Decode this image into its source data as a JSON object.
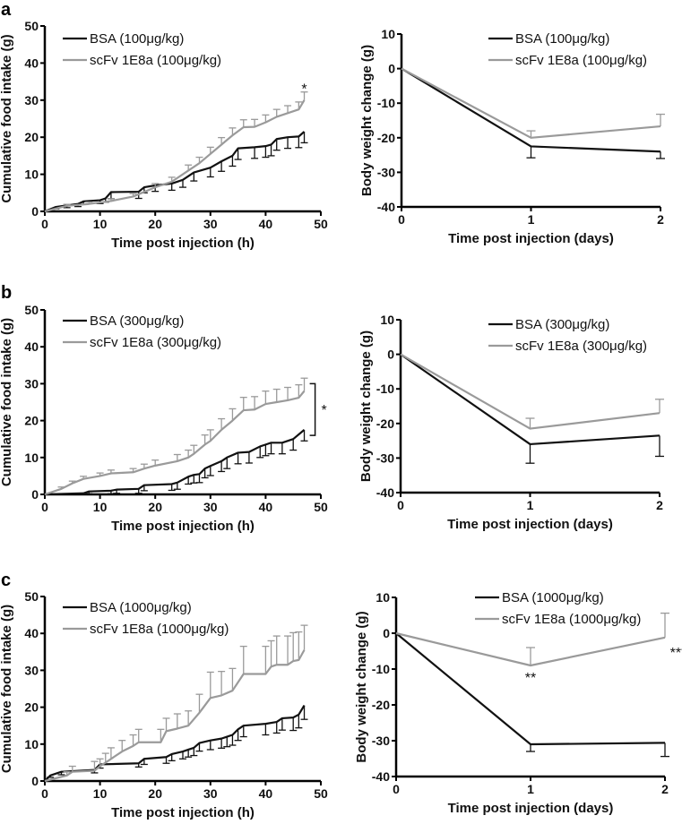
{
  "colors": {
    "bsa": "#111111",
    "scfv": "#9a9a9a"
  },
  "chart_data": [
    {
      "panel": "a",
      "type": "line",
      "xlabel": "Time post injection (h)",
      "ylabel": "Cumulative food intake (g)",
      "xlim": [
        0,
        50
      ],
      "ylim": [
        0,
        50
      ],
      "xticks": [
        0,
        10,
        20,
        30,
        40,
        50
      ],
      "yticks": [
        0,
        10,
        20,
        30,
        40,
        50
      ],
      "legend_position": "top-left",
      "series": [
        {
          "name": "BSA (100μg/kg)",
          "color": "bsa",
          "err_dir": -1,
          "x": [
            0,
            2,
            4,
            6,
            7,
            10,
            11,
            12,
            17,
            18,
            20,
            23,
            25,
            27,
            30,
            32,
            34,
            35,
            38,
            40,
            41,
            42,
            44,
            46,
            47
          ],
          "y": [
            0,
            1.2,
            1.6,
            2,
            2.7,
            3,
            3.5,
            5.2,
            5.3,
            6.5,
            7,
            7.5,
            8.5,
            10.5,
            11.8,
            13.5,
            15,
            17,
            17.3,
            17.6,
            18,
            19.5,
            20,
            20.2,
            21.5
          ],
          "err": [
            0,
            0.5,
            0.6,
            0.7,
            0.8,
            0.9,
            1,
            1.8,
            1.8,
            1.5,
            1.6,
            1.8,
            2,
            2.3,
            2.5,
            2.7,
            2.8,
            3,
            3,
            3,
            3,
            3,
            3,
            3,
            3
          ]
        },
        {
          "name": "scFv 1E8a (100μg/kg)",
          "color": "scfv",
          "err_dir": 1,
          "x": [
            0,
            4,
            8,
            12,
            16,
            20,
            23,
            26,
            28,
            30,
            32,
            34,
            36,
            38,
            40,
            42,
            44,
            46,
            47
          ],
          "y": [
            0,
            1.5,
            2,
            2.8,
            4,
            6.5,
            8,
            11,
            13,
            15.5,
            18,
            20.5,
            22.7,
            22.8,
            24,
            25.5,
            26.5,
            27.5,
            30
          ],
          "err": [
            0,
            0.4,
            0.5,
            0.6,
            0.8,
            1,
            1.2,
            1.5,
            1.6,
            1.8,
            1.9,
            2,
            2,
            2,
            2,
            2,
            2,
            2,
            2.2
          ]
        }
      ],
      "annotations": [
        {
          "text": "*",
          "x": 47,
          "y": 33
        }
      ]
    },
    {
      "panel": "a",
      "type": "line",
      "xlabel": "Time post injection (days)",
      "ylabel": "Body weight change (g)",
      "xlim": [
        0,
        2
      ],
      "ylim": [
        -40,
        10
      ],
      "xticks": [
        0,
        1,
        2
      ],
      "yticks": [
        10,
        0,
        -10,
        -20,
        -30,
        -40
      ],
      "legend_position": "top-right",
      "series": [
        {
          "name": "BSA (100μg/kg)",
          "color": "bsa",
          "err_dir": -1,
          "x": [
            0,
            1,
            2
          ],
          "y": [
            0,
            -22.5,
            -24
          ],
          "err": [
            0,
            3.3,
            2
          ]
        },
        {
          "name": "scFv 1E8a (100μg/kg)",
          "color": "scfv",
          "err_dir": 1,
          "x": [
            0,
            1,
            2
          ],
          "y": [
            0,
            -20,
            -16.7
          ],
          "err": [
            0,
            2,
            3.5
          ]
        }
      ],
      "annotations": []
    },
    {
      "panel": "b",
      "type": "line",
      "xlabel": "Time post injection (h)",
      "ylabel": "Cumulative food intake (g)",
      "xlim": [
        0,
        50
      ],
      "ylim": [
        0,
        50
      ],
      "xticks": [
        0,
        10,
        20,
        30,
        40,
        50
      ],
      "yticks": [
        0,
        10,
        20,
        30,
        40,
        50
      ],
      "legend_position": "top-left",
      "series": [
        {
          "name": "BSA (300μg/kg)",
          "color": "bsa",
          "err_dir": -1,
          "x": [
            0,
            7,
            8,
            12,
            13,
            17,
            18,
            23,
            24,
            26,
            27,
            28,
            29,
            30,
            32,
            33,
            35,
            37,
            39,
            40,
            41,
            43,
            45,
            47
          ],
          "y": [
            0,
            0.3,
            0.8,
            1,
            1.3,
            1.5,
            2.5,
            2.8,
            3.2,
            4.8,
            5.3,
            5.5,
            7,
            7.7,
            9,
            10,
            11.3,
            11.5,
            13,
            13.5,
            14,
            14,
            15,
            17.5
          ],
          "err": [
            0,
            0.3,
            0.6,
            0.8,
            1,
            1.2,
            1.5,
            1.7,
            1.8,
            2,
            2.2,
            2.3,
            2.5,
            2.6,
            2.8,
            3,
            3,
            3,
            3,
            3,
            3,
            3,
            3,
            3
          ]
        },
        {
          "name": "scFv 1E8a (300μg/kg)",
          "color": "scfv",
          "err_dir": 1,
          "x": [
            0,
            3,
            5,
            7,
            10,
            12,
            16,
            18,
            20,
            24,
            26,
            27,
            29,
            30,
            32,
            34,
            36,
            38,
            40,
            42,
            44,
            46,
            47
          ],
          "y": [
            0,
            1.5,
            3,
            4.2,
            5,
            5.7,
            6,
            7,
            7.8,
            9,
            10,
            11,
            13.5,
            14.5,
            17.5,
            20,
            22.8,
            23,
            24.5,
            25,
            25.5,
            26.2,
            28
          ],
          "err": [
            0,
            0.5,
            0.6,
            0.7,
            0.8,
            0.9,
            1,
            1.2,
            1.5,
            1.8,
            2,
            2.3,
            2.6,
            3,
            3,
            3.2,
            3.5,
            3.5,
            3.5,
            3.5,
            3.5,
            3.5,
            3.5
          ]
        }
      ],
      "annotations": [
        {
          "text": "*",
          "x": 50,
          "y": 23,
          "bracket": [
            16,
            30
          ]
        }
      ]
    },
    {
      "panel": "b",
      "type": "line",
      "xlabel": "Time post injection (days)",
      "ylabel": "Body weight change (g)",
      "xlim": [
        0,
        2
      ],
      "ylim": [
        -40,
        10
      ],
      "xticks": [
        0,
        1,
        2
      ],
      "yticks": [
        10,
        0,
        -10,
        -20,
        -30,
        -40
      ],
      "legend_position": "top-right",
      "series": [
        {
          "name": "BSA (300μg/kg)",
          "color": "bsa",
          "err_dir": -1,
          "x": [
            0,
            1,
            2
          ],
          "y": [
            0,
            -26,
            -23.5
          ],
          "err": [
            0,
            5.5,
            6
          ]
        },
        {
          "name": "scFv 1E8a (300μg/kg)",
          "color": "scfv",
          "err_dir": 1,
          "x": [
            0,
            1,
            2
          ],
          "y": [
            0,
            -21.5,
            -17
          ],
          "err": [
            0,
            3,
            4
          ]
        }
      ],
      "annotations": []
    },
    {
      "panel": "c",
      "type": "line",
      "xlabel": "Time post injection (h)",
      "ylabel": "Cumulative food intake (g)",
      "xlim": [
        0,
        50
      ],
      "ylim": [
        0,
        50
      ],
      "xticks": [
        0,
        10,
        20,
        30,
        40,
        50
      ],
      "yticks": [
        0,
        10,
        20,
        30,
        40,
        50
      ],
      "legend_position": "top-left",
      "series": [
        {
          "name": "BSA (1000μg/kg)",
          "color": "bsa",
          "err_dir": -1,
          "x": [
            0,
            1,
            3,
            9,
            10,
            17,
            18,
            22,
            23,
            25,
            26,
            27,
            28,
            30,
            32,
            33,
            34,
            35,
            36,
            40,
            42,
            43,
            45,
            46,
            47
          ],
          "y": [
            0,
            1.5,
            2.5,
            3,
            4.5,
            4.8,
            6,
            6.5,
            7.3,
            8,
            8.5,
            9,
            10.3,
            11,
            11.5,
            12,
            12.5,
            14,
            15,
            15.5,
            16,
            17,
            17.2,
            18,
            20.5
          ],
          "err": [
            0,
            0.5,
            0.8,
            0.8,
            1,
            1,
            1.5,
            1.7,
            1.8,
            2,
            2,
            2.1,
            2.2,
            2.5,
            2.6,
            2.7,
            2.8,
            3,
            3,
            3,
            3,
            3.2,
            3.5,
            3.6,
            3.8
          ]
        },
        {
          "name": "scFv 1E8a (1000μg/kg)",
          "color": "scfv",
          "err_dir": 1,
          "x": [
            0,
            4,
            5,
            9,
            10,
            11,
            12,
            14,
            16,
            17,
            21,
            22,
            24,
            26,
            28,
            30,
            32,
            34,
            36,
            40,
            41,
            42,
            44,
            45,
            46,
            47
          ],
          "y": [
            0,
            1.5,
            2.5,
            2.8,
            4,
            5,
            6,
            8,
            9.5,
            10.5,
            10.5,
            13.5,
            14.2,
            15,
            18.5,
            22.5,
            23.2,
            24.5,
            29,
            29,
            31,
            31.5,
            31.5,
            32.5,
            32.8,
            35.5
          ],
          "err": [
            0,
            1,
            1.5,
            2.5,
            2,
            2.5,
            3,
            3,
            3,
            3.5,
            3.5,
            3.5,
            4,
            4,
            5,
            7,
            6.5,
            6,
            7.5,
            7.5,
            7,
            7.8,
            7.8,
            7.7,
            7.6,
            6.7
          ]
        }
      ],
      "annotations": []
    },
    {
      "panel": "c",
      "type": "line",
      "xlabel": "Time post injection (days)",
      "ylabel": "Body weight change (g)",
      "xlim": [
        0,
        2
      ],
      "ylim": [
        -40,
        10
      ],
      "xticks": [
        0,
        1,
        2
      ],
      "yticks": [
        10,
        0,
        -10,
        -20,
        -30,
        -40
      ],
      "legend_position": "top-right",
      "series": [
        {
          "name": "BSA (1000μg/kg)",
          "color": "bsa",
          "err_dir": -1,
          "x": [
            0,
            1,
            2
          ],
          "y": [
            0,
            -31,
            -30.6
          ],
          "err": [
            0,
            2,
            3.8
          ]
        },
        {
          "name": "scFv 1E8a (1000μg/kg)",
          "color": "scfv",
          "err_dir": 1,
          "x": [
            0,
            1,
            2
          ],
          "y": [
            0,
            -9,
            -1.2
          ],
          "err": [
            0,
            5,
            6.8
          ]
        }
      ],
      "annotations": [
        {
          "text": "**",
          "x": 1,
          "y": -12.5
        },
        {
          "text": "***",
          "x": 2.1,
          "y": -5.5
        }
      ]
    }
  ]
}
